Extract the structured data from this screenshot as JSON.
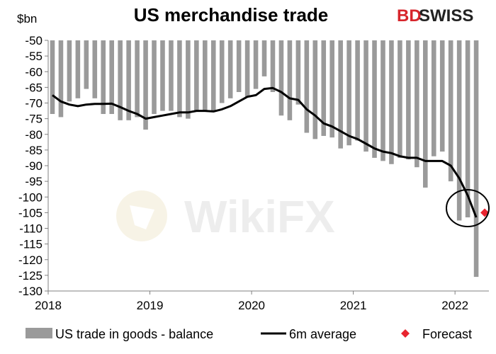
{
  "brand": {
    "part1": "BD",
    "part2": "SWISS",
    "accent": "#d7262c"
  },
  "watermark": {
    "text": "WikiFX"
  },
  "colors": {
    "bar": "#9a9a9a",
    "line": "#000000",
    "forecast": "#e8242f",
    "circle": "#000000"
  },
  "chart_data": {
    "type": "bar",
    "title": "US merchandise trade",
    "ylabel": "$bn",
    "xlabel": "",
    "ylim": [
      -130,
      -50
    ],
    "yticks": [
      -50,
      -55,
      -60,
      -65,
      -70,
      -75,
      -80,
      -85,
      -90,
      -95,
      -100,
      -105,
      -110,
      -115,
      -120,
      -125,
      -130
    ],
    "ytick_labels": [
      "-50",
      "-55",
      "-60",
      "-65",
      "-70",
      "-75",
      "-80",
      "-85",
      "-90",
      "-95",
      "-100",
      "-105",
      "-110",
      "-115",
      "-120",
      "-125",
      "-130"
    ],
    "xlim": [
      "2018-01",
      "2022-05"
    ],
    "xtick_labels": [
      "2018",
      "2019",
      "2020",
      "2021",
      "2022"
    ],
    "xtick_dates": [
      "2018-01",
      "2019-01",
      "2020-01",
      "2021-01",
      "2022-01"
    ],
    "grid": false,
    "legend": "bottom",
    "series": [
      {
        "name": "US trade in goods - balance",
        "type": "bar",
        "x": [
          "2018-01",
          "2018-02",
          "2018-03",
          "2018-04",
          "2018-05",
          "2018-06",
          "2018-07",
          "2018-08",
          "2018-09",
          "2018-10",
          "2018-11",
          "2018-12",
          "2019-01",
          "2019-02",
          "2019-03",
          "2019-04",
          "2019-05",
          "2019-06",
          "2019-07",
          "2019-08",
          "2019-09",
          "2019-10",
          "2019-11",
          "2019-12",
          "2020-01",
          "2020-02",
          "2020-03",
          "2020-04",
          "2020-05",
          "2020-06",
          "2020-07",
          "2020-08",
          "2020-09",
          "2020-10",
          "2020-11",
          "2020-12",
          "2021-01",
          "2021-02",
          "2021-03",
          "2021-04",
          "2021-05",
          "2021-06",
          "2021-07",
          "2021-08",
          "2021-09",
          "2021-10",
          "2021-11",
          "2021-12",
          "2022-01",
          "2022-02",
          "2022-03"
        ],
        "values": [
          -73.5,
          -74.5,
          -69.5,
          -68.5,
          -65.5,
          -68.5,
          -73.5,
          -73.5,
          -75.5,
          -75.5,
          -74.5,
          -78.5,
          -73.5,
          -72.5,
          -72.5,
          -74.5,
          -75.0,
          -72.5,
          -72.5,
          -72.5,
          -70.0,
          -68.5,
          -66.5,
          -68.0,
          -65.5,
          -61.5,
          -66.5,
          -74.0,
          -75.5,
          -70.5,
          -79.5,
          -81.5,
          -80.5,
          -81.0,
          -84.5,
          -83.5,
          -82.0,
          -85.5,
          -87.5,
          -88.5,
          -89.5,
          -87.5,
          -88.0,
          -90.5,
          -97.0,
          -87.0,
          -85.5,
          -95.0,
          -107.5,
          -106.5,
          -125.5
        ]
      },
      {
        "name": "6m average",
        "type": "line",
        "x": [
          "2018-01",
          "2018-02",
          "2018-03",
          "2018-04",
          "2018-05",
          "2018-06",
          "2018-07",
          "2018-08",
          "2018-09",
          "2018-10",
          "2018-11",
          "2018-12",
          "2019-01",
          "2019-02",
          "2019-03",
          "2019-04",
          "2019-05",
          "2019-06",
          "2019-07",
          "2019-08",
          "2019-09",
          "2019-10",
          "2019-11",
          "2019-12",
          "2020-01",
          "2020-02",
          "2020-03",
          "2020-04",
          "2020-05",
          "2020-06",
          "2020-07",
          "2020-08",
          "2020-09",
          "2020-10",
          "2020-11",
          "2020-12",
          "2021-01",
          "2021-02",
          "2021-03",
          "2021-04",
          "2021-05",
          "2021-06",
          "2021-07",
          "2021-08",
          "2021-09",
          "2021-10",
          "2021-11",
          "2021-12",
          "2022-01",
          "2022-02",
          "2022-03"
        ],
        "values": [
          -67.5,
          -69.5,
          -70.5,
          -71.0,
          -70.5,
          -70.3,
          -70.3,
          -70.2,
          -71.3,
          -72.5,
          -73.5,
          -75.0,
          -74.5,
          -74.0,
          -73.5,
          -73.0,
          -73.0,
          -72.5,
          -72.5,
          -72.7,
          -72.0,
          -71.0,
          -69.5,
          -68.0,
          -67.5,
          -65.5,
          -65.2,
          -66.5,
          -68.5,
          -69.0,
          -72.0,
          -74.0,
          -76.5,
          -77.5,
          -79.0,
          -80.5,
          -81.5,
          -83.0,
          -84.5,
          -85.5,
          -86.0,
          -87.0,
          -87.5,
          -87.5,
          -88.5,
          -88.5,
          -88.5,
          -90.0,
          -94.0,
          -99.5,
          -106.5
        ]
      },
      {
        "name": "Forecast",
        "type": "scatter",
        "x": [
          "2022-04"
        ],
        "values": [
          -105.0
        ]
      }
    ]
  }
}
